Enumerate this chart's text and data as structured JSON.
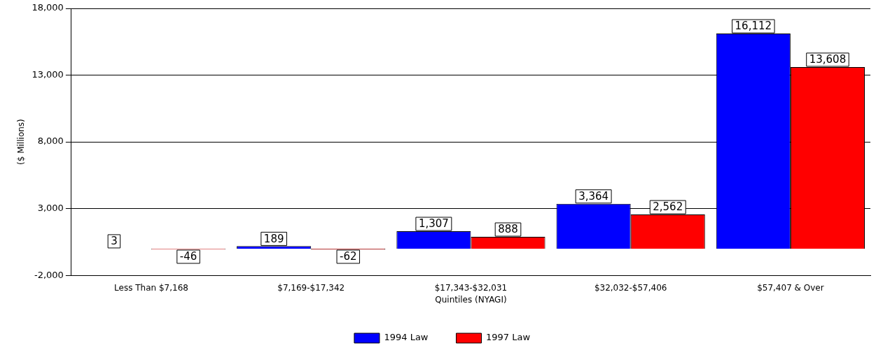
{
  "chart_data": {
    "type": "bar",
    "xlabel": "Quintiles (NYAGI)",
    "ylabel": "($ Millions)",
    "categories": [
      "Less Than $7,168",
      "$7,169-$17,342",
      "$17,343-$32,031",
      "$32,032-$57,406",
      "$57,407 & Over"
    ],
    "series": [
      {
        "name": "1994 Law",
        "color": "#0000ff",
        "values": [
          3,
          189,
          1307,
          3364,
          16112
        ],
        "value_labels": [
          "3",
          "189",
          "1,307",
          "3,364",
          "16,112"
        ]
      },
      {
        "name": "1997 Law",
        "color": "#ff0000",
        "values": [
          -46,
          -62,
          888,
          2562,
          13608
        ],
        "value_labels": [
          "-46",
          "-62",
          "888",
          "2,562",
          "13,608"
        ]
      }
    ],
    "ylim": [
      -2000,
      18000
    ],
    "yticks": [
      {
        "value": -2000,
        "label": "-2,000"
      },
      {
        "value": 3000,
        "label": "3,000"
      },
      {
        "value": 8000,
        "label": "8,000"
      },
      {
        "value": 13000,
        "label": "13,000"
      },
      {
        "value": 18000,
        "label": "18,000"
      }
    ],
    "grid": "y",
    "legend": "bottom"
  }
}
